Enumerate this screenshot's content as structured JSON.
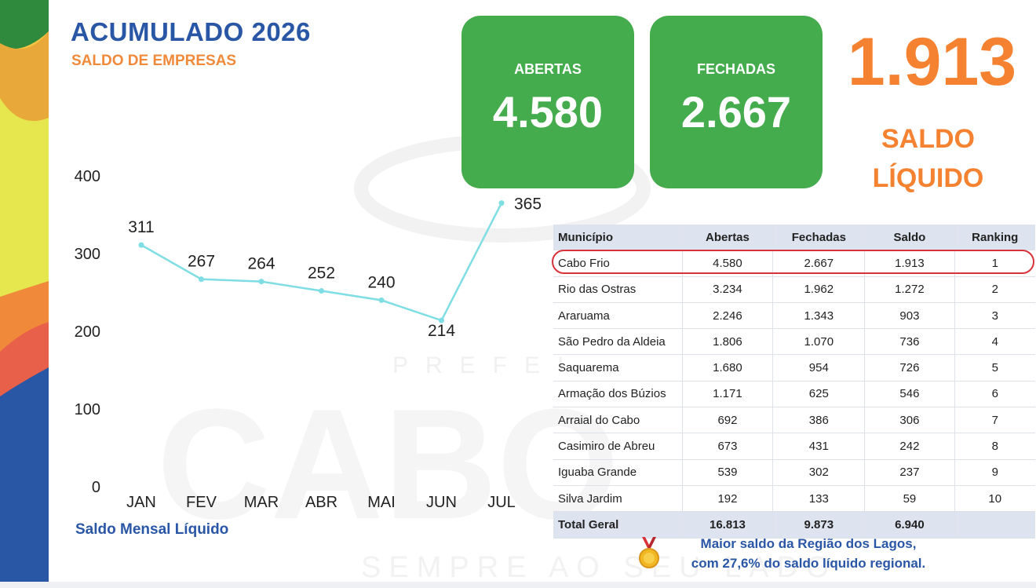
{
  "header": {
    "title": "ACUMULADO 2026",
    "subtitle": "SALDO DE EMPRESAS"
  },
  "kpis": {
    "abertas_label": "ABERTAS",
    "abertas_value": "4.580",
    "fechadas_label": "FECHADAS",
    "fechadas_value": "2.667",
    "saldo_value": "1.913",
    "saldo_label_line1": "SALDO",
    "saldo_label_line2": "LÍQUIDO"
  },
  "chart_caption": "Saldo Mensal Líquido",
  "chart_data": {
    "type": "line",
    "title": "",
    "xlabel": "",
    "ylabel": "",
    "categories": [
      "JAN",
      "FEV",
      "MAR",
      "ABR",
      "MAI",
      "JUN",
      "JUL"
    ],
    "series": [
      {
        "values": [
          311,
          267,
          264,
          252,
          240,
          214,
          365
        ]
      }
    ],
    "data_labels": [
      "311",
      "267",
      "264",
      "252",
      "240",
      "214",
      "365"
    ],
    "yticks": [
      "0",
      "100",
      "200",
      "300",
      "400"
    ],
    "ylim": [
      0,
      400
    ],
    "grid": false,
    "line_color": "#7fdde4"
  },
  "table": {
    "headers": [
      "Município",
      "Abertas",
      "Fechadas",
      "Saldo",
      "Ranking"
    ],
    "rows": [
      [
        "Cabo Frio",
        "4.580",
        "2.667",
        "1.913",
        "1"
      ],
      [
        "Rio das Ostras",
        "3.234",
        "1.962",
        "1.272",
        "2"
      ],
      [
        "Araruama",
        "2.246",
        "1.343",
        "903",
        "3"
      ],
      [
        "São Pedro da Aldeia",
        "1.806",
        "1.070",
        "736",
        "4"
      ],
      [
        "Saquarema",
        "1.680",
        "954",
        "726",
        "5"
      ],
      [
        "Armação dos Búzios",
        "1.171",
        "625",
        "546",
        "6"
      ],
      [
        "Arraial do Cabo",
        "692",
        "386",
        "306",
        "7"
      ],
      [
        "Casimiro de Abreu",
        "673",
        "431",
        "242",
        "8"
      ],
      [
        "Iguaba Grande",
        "539",
        "302",
        "237",
        "9"
      ],
      [
        "Silva Jardim",
        "192",
        "133",
        "59",
        "10"
      ]
    ],
    "total": [
      "Total Geral",
      "16.813",
      "9.873",
      "6.940",
      ""
    ]
  },
  "footnote": {
    "line1": "Maior saldo da Região dos Lagos,",
    "line2": "com 27,6% do saldo líquido regional."
  },
  "watermark": {
    "brand": "CABO",
    "top_text": "PREFEI",
    "bottom_text": "SEMPRE AO SEU LADO"
  },
  "colors": {
    "title_blue": "#2a56a6",
    "accent_orange": "#f58231",
    "card_green": "#44ac4d",
    "highlight_red": "#d8323a"
  }
}
